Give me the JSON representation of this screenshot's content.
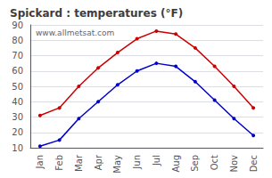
{
  "chart_data": {
    "type": "line",
    "title": "Spickard : temperatures (°F)",
    "categories": [
      "Jan",
      "Feb",
      "Mar",
      "Apr",
      "May",
      "Jun",
      "Jul",
      "Aug",
      "Sep",
      "Oct",
      "Nov",
      "Dec"
    ],
    "series": [
      {
        "color": "#cc0000",
        "values": [
          31,
          36,
          50,
          62,
          72,
          81,
          86,
          84,
          75,
          63,
          50,
          36
        ]
      },
      {
        "color": "#0000cc",
        "values": [
          11,
          15,
          29,
          40,
          51,
          60,
          65,
          63,
          53,
          41,
          29,
          18
        ]
      }
    ],
    "marker": "circle",
    "ylim": [
      10,
      90
    ],
    "yticks": [
      10,
      20,
      30,
      40,
      50,
      60,
      70,
      80,
      90
    ],
    "grid": true,
    "annotations": [
      "www.allmetsat.com"
    ]
  }
}
